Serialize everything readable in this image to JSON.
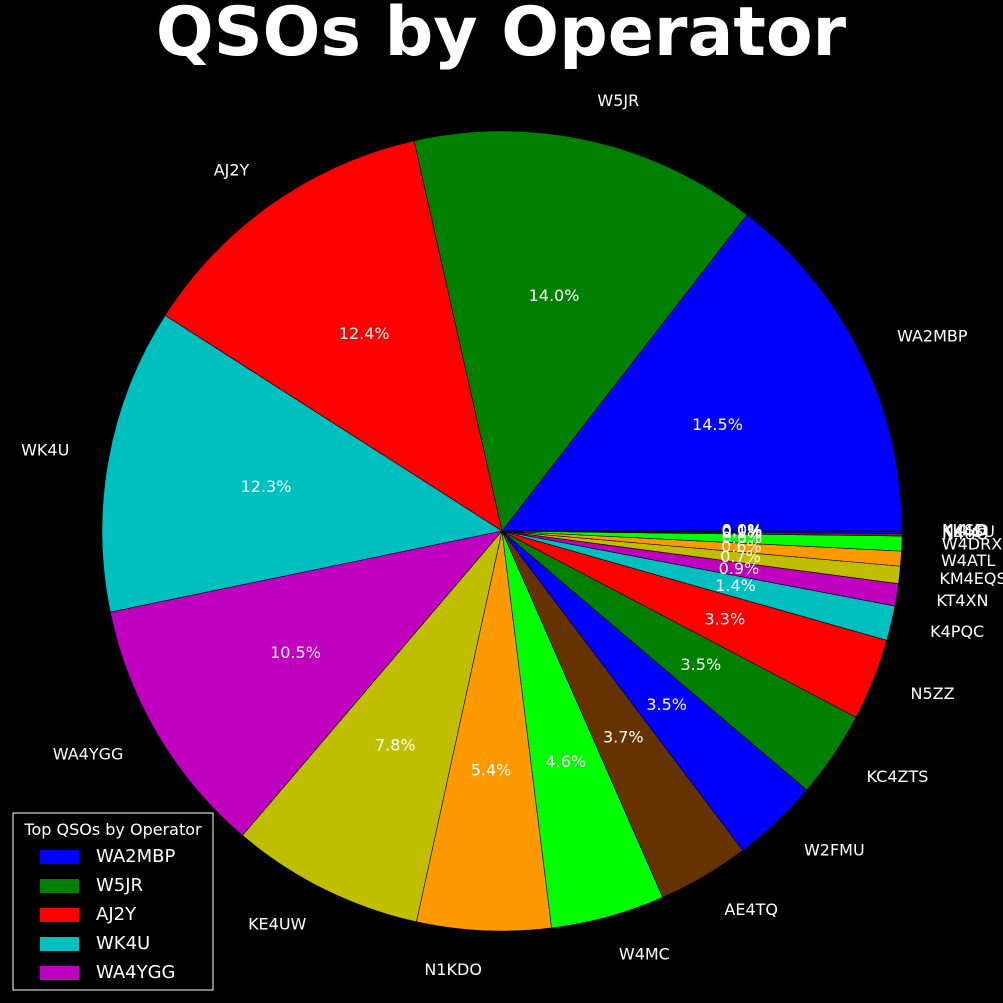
{
  "chart_data": {
    "type": "pie",
    "title": "QSOs by Operator",
    "start_angle_deg": 0,
    "direction": "counterclockwise",
    "slices": [
      {
        "label": "WA2MBP",
        "value": 14.5,
        "pct_text": "14.5%",
        "color": "#0000ff"
      },
      {
        "label": "W5JR",
        "value": 14.0,
        "pct_text": "14.0%",
        "color": "#008000"
      },
      {
        "label": "AJ2Y",
        "value": 12.4,
        "pct_text": "12.4%",
        "color": "#ff0000"
      },
      {
        "label": "WK4U",
        "value": 12.3,
        "pct_text": "12.3%",
        "color": "#00bfbf"
      },
      {
        "label": "WA4YGG",
        "value": 10.5,
        "pct_text": "10.5%",
        "color": "#bf00bf"
      },
      {
        "label": "KE4UW",
        "value": 7.8,
        "pct_text": "7.8%",
        "color": "#bfbf00"
      },
      {
        "label": "N1KDO",
        "value": 5.4,
        "pct_text": "5.4%",
        "color": "#ff9900"
      },
      {
        "label": "W4MC",
        "value": 4.6,
        "pct_text": "4.6%",
        "color": "#00ff00"
      },
      {
        "label": "AE4TQ",
        "value": 3.7,
        "pct_text": "3.7%",
        "color": "#663300"
      },
      {
        "label": "W2FMU",
        "value": 3.5,
        "pct_text": "3.5%",
        "color": "#0000ff"
      },
      {
        "label": "KC4ZTS",
        "value": 3.5,
        "pct_text": "3.5%",
        "color": "#008000"
      },
      {
        "label": "N5ZZ",
        "value": 3.3,
        "pct_text": "3.3%",
        "color": "#ff0000"
      },
      {
        "label": "K4PQC",
        "value": 1.4,
        "pct_text": "1.4%",
        "color": "#00bfbf"
      },
      {
        "label": "KT4XN",
        "value": 0.9,
        "pct_text": "0.9%",
        "color": "#bf00bf"
      },
      {
        "label": "KM4EQS",
        "value": 0.7,
        "pct_text": "0.7%",
        "color": "#bfbf00"
      },
      {
        "label": "W4ATL",
        "value": 0.6,
        "pct_text": "0.6%",
        "color": "#ff9900"
      },
      {
        "label": "W4DRX",
        "value": 0.6,
        "pct_text": "0.6%",
        "color": "#00ff00"
      },
      {
        "label": "N4UO",
        "value": 0.1,
        "pct_text": "0.1%",
        "color": "#663300"
      },
      {
        "label": "KK4SU",
        "value": 0.1,
        "pct_text": "0.1%",
        "color": "#0000ff"
      },
      {
        "label": "N4SD",
        "value": 0.0,
        "pct_text": "0.0%",
        "color": "#008000"
      },
      {
        "label": "KI4LD",
        "value": 0.0,
        "pct_text": "0.0%",
        "color": "#ff0000"
      }
    ],
    "legend": {
      "title": "Top QSOs by Operator",
      "placement": "lower-left",
      "entries": [
        {
          "label": "WA2MBP",
          "color": "#0000ff"
        },
        {
          "label": "W5JR",
          "color": "#008000"
        },
        {
          "label": "AJ2Y",
          "color": "#ff0000"
        },
        {
          "label": "WK4U",
          "color": "#00bfbf"
        },
        {
          "label": "WA4YGG",
          "color": "#bf00bf"
        }
      ]
    }
  }
}
